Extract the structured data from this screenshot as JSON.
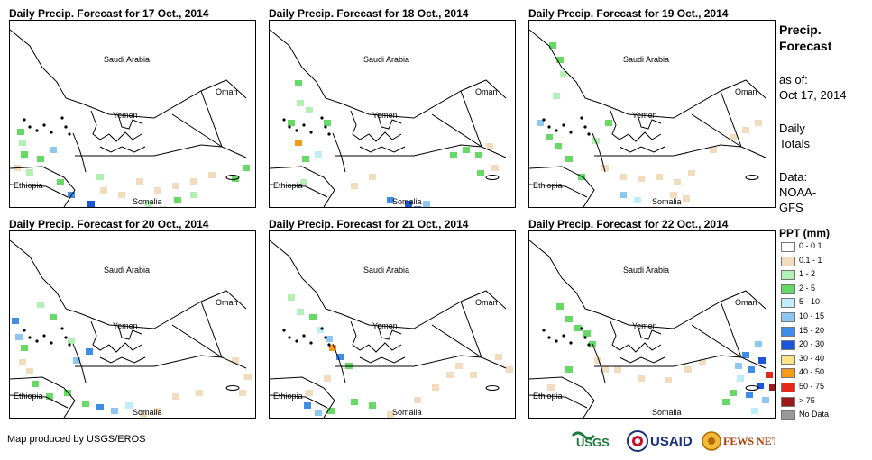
{
  "panels": [
    {
      "title": "Daily Precip. Forecast for 17 Oct., 2014"
    },
    {
      "title": "Daily Precip. Forecast for 18 Oct., 2014"
    },
    {
      "title": "Daily Precip. Forecast for 19 Oct., 2014"
    },
    {
      "title": "Daily Precip. Forecast for 20 Oct., 2014"
    },
    {
      "title": "Daily Precip. Forecast for 21 Oct., 2014"
    },
    {
      "title": "Daily Precip. Forecast for 22 Oct., 2014"
    }
  ],
  "map_labels": {
    "saudi": "Saudi Arabia",
    "oman": "Oman",
    "yemen": "Yemen",
    "ethiopia": "Ethiopia",
    "somalia": "Somalia"
  },
  "sidebar": {
    "title1": "Precip.",
    "title2": "Forecast",
    "asof1": "as of:",
    "asof2": "Oct 17, 2014",
    "daily1": "Daily",
    "daily2": "Totals",
    "data1": "Data:",
    "data2": "NOAA-",
    "data3": "GFS"
  },
  "legend": {
    "title": "PPT (mm)",
    "items": [
      {
        "label": "0 - 0.1",
        "color": "#ffffff"
      },
      {
        "label": "0.1 - 1",
        "color": "#f1dcbe"
      },
      {
        "label": "1 - 2",
        "color": "#b3f0b3"
      },
      {
        "label": "2 - 5",
        "color": "#66d966"
      },
      {
        "label": "5 - 10",
        "color": "#bfeef8"
      },
      {
        "label": "10 - 15",
        "color": "#8ec8f2"
      },
      {
        "label": "15 - 20",
        "color": "#3e8ee6"
      },
      {
        "label": "20 - 30",
        "color": "#1a56d6"
      },
      {
        "label": "30 - 40",
        "color": "#fbe38a"
      },
      {
        "label": "40 - 50",
        "color": "#f59a1a"
      },
      {
        "label": "50 - 75",
        "color": "#e5281a"
      },
      {
        "label": "> 75",
        "color": "#9e1a1a"
      },
      {
        "label": "No Data",
        "color": "#999999"
      }
    ]
  },
  "credit": "Map produced by USGS/EROS",
  "logos": {
    "usgs": "USGS",
    "usaid": "USAID",
    "fewsnet": "FEWS NET"
  }
}
